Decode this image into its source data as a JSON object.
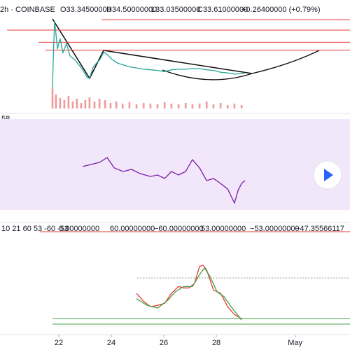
{
  "chart_data": [
    {
      "type": "line",
      "title": "2h · COINBASE",
      "header_values": [
        "O33.34500000",
        "H34.50000000",
        "L33.03500000",
        "C33.61000000",
        "+0.26400000 (+0.79%)"
      ],
      "header_color": "#26a69a",
      "x": [
        21.76,
        21.79,
        21.84,
        21.95,
        22.05,
        22.16,
        22.29,
        22.43,
        22.59,
        22.75,
        22.91,
        23.07,
        23.17,
        23.31,
        23.44,
        23.57,
        23.71,
        23.84,
        24.03,
        24.24,
        24.45,
        24.69,
        24.96,
        25.23,
        25.49,
        25.76,
        26.03,
        26.29,
        26.56,
        26.83,
        27.09,
        27.36,
        27.63,
        27.89,
        28.16,
        28.43,
        28.69,
        28.96,
        29.09
      ],
      "series": [
        {
          "name": "Close",
          "color": "#26a69a",
          "values": [
            33.38,
            33.84,
            34.47,
            34.01,
            34.18,
            33.95,
            34.1,
            33.89,
            33.84,
            33.76,
            33.67,
            33.55,
            33.53,
            33.72,
            33.78,
            33.84,
            33.96,
            33.92,
            33.84,
            33.78,
            33.75,
            33.72,
            33.7,
            33.68,
            33.67,
            33.66,
            33.64,
            33.67,
            33.68,
            33.68,
            33.69,
            33.69,
            33.67,
            33.66,
            33.63,
            33.62,
            33.6,
            33.61,
            33.62
          ]
        }
      ],
      "levels": [
        {
          "value": 34.49,
          "start": 23.63,
          "color": "#e53935"
        },
        {
          "value": 34.32,
          "start": 20.03,
          "color": "#e53935"
        },
        {
          "value": 34.12,
          "start": 21.23,
          "color": "#e53935"
        },
        {
          "value": 33.99,
          "start": 21.49,
          "color": "#e53935"
        }
      ],
      "xlim": [
        19.76,
        33.09
      ],
      "ylim": [
        32.98,
        34.64
      ],
      "xticks": [
        22,
        24,
        26,
        28,
        {
          "value": 31,
          "label": "May"
        }
      ]
    },
    {
      "type": "bar",
      "x": [
        21.76,
        21.89,
        22.05,
        22.21,
        22.37,
        22.53,
        22.69,
        22.85,
        23.01,
        23.17,
        23.36,
        23.55,
        23.76,
        23.97,
        24.19,
        24.43,
        24.69,
        24.96,
        25.23,
        25.49,
        25.76,
        26.03,
        26.29,
        26.56,
        26.83,
        27.09,
        27.36,
        27.63,
        27.89,
        28.16,
        28.43,
        28.69,
        28.96
      ],
      "values": [
        30,
        20,
        15,
        12,
        18,
        10,
        14,
        8,
        12,
        16,
        10,
        14,
        12,
        8,
        10,
        7,
        9,
        6,
        8,
        7,
        6,
        9,
        7,
        6,
        8,
        6,
        7,
        10,
        6,
        8,
        5,
        7,
        5
      ],
      "color": "#ef9a9a",
      "xlim": [
        19.76,
        33.09
      ],
      "ylim": [
        0,
        50
      ]
    },
    {
      "type": "line",
      "label": "58",
      "band_color": "#f1e6fa",
      "x": [
        22.91,
        23.23,
        23.55,
        23.84,
        24.11,
        24.45,
        24.77,
        25.09,
        25.49,
        25.76,
        26.03,
        26.29,
        26.56,
        26.83,
        27.09,
        27.36,
        27.63,
        27.89,
        28.16,
        28.43,
        28.69,
        28.83,
        28.96,
        29.09
      ],
      "series": [
        {
          "name": "RSI",
          "color": "#7b1fa2",
          "values": [
            47.2,
            48.5,
            49.8,
            52.8,
            46.3,
            44.1,
            45.4,
            42.8,
            41.0,
            41.9,
            39.7,
            44.1,
            41.9,
            44.1,
            51.5,
            46.3,
            38.4,
            39.7,
            36.6,
            33.1,
            24.4,
            32.3,
            36.6,
            38.4
          ]
        }
      ],
      "xlim": [
        19.76,
        33.09
      ],
      "ylim": [
        20,
        80
      ]
    },
    {
      "type": "line",
      "title": "10 21 60 53 -60 -53",
      "header_values": [
        "0.00000000",
        "60.00000000",
        "−60.00000000",
        "53.00000000",
        "−53.00000000",
        "−47.35566117"
      ],
      "header_colors": [
        "#787b86",
        "#e53935",
        "#43a047",
        "#e53935",
        "#43a047",
        "#333333"
      ],
      "series": [
        {
          "name": "Fast",
          "color": "#e53935",
          "x": [
            24.96,
            25.23,
            25.49,
            25.76,
            26.03,
            26.29,
            26.56,
            26.75,
            26.96,
            27.17,
            27.36,
            27.49,
            27.63,
            27.89,
            28.16,
            28.43,
            28.69,
            28.96
          ],
          "values": [
            -20,
            -30.4,
            -37.4,
            -35.7,
            -33,
            -20,
            -11.3,
            -13,
            -13,
            -7,
            14.8,
            16.5,
            10.4,
            -15.7,
            -20,
            -37.4,
            -47.8,
            -53
          ]
        },
        {
          "name": "Slow",
          "color": "#43a047",
          "x": [
            24.96,
            25.36,
            25.76,
            26.16,
            26.43,
            26.75,
            27.09,
            27.36,
            27.55,
            27.76,
            28.03,
            28.29,
            28.56,
            28.96
          ],
          "values": [
            -27,
            -35.7,
            -39.1,
            -28.7,
            -18.3,
            -11.3,
            -11.3,
            4.3,
            13,
            1.7,
            -18.3,
            -24.3,
            -37.4,
            -54.8
          ]
        }
      ],
      "levels": [
        {
          "value": 60,
          "start": 21.28,
          "color": "#e53935"
        },
        {
          "value": 0,
          "start": 24.99,
          "color": "#9e9e9e"
        },
        {
          "value": -53,
          "start": 21.76,
          "color": "#43a047"
        },
        {
          "value": -60,
          "start": 21.76,
          "color": "#43a047"
        }
      ],
      "xlim": [
        19.76,
        33.09
      ],
      "ylim": [
        -75.5,
        65.5
      ]
    }
  ]
}
